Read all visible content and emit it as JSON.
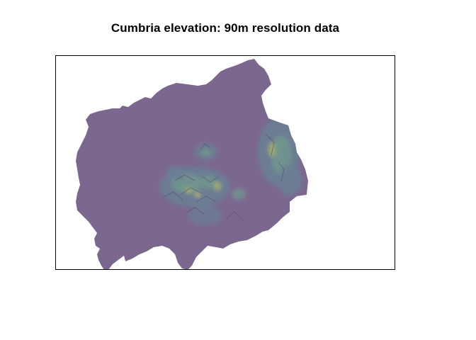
{
  "map": {
    "title": "Cumbria elevation: 90m resolution data",
    "colors": {
      "low": "#7f6b93",
      "mid": "#63909a",
      "mid_high": "#6fb191",
      "high": "#b9d95a",
      "peak": "#e9e83c",
      "shadow": "#54445f",
      "frame": "#000000",
      "background": "#ffffff"
    }
  }
}
